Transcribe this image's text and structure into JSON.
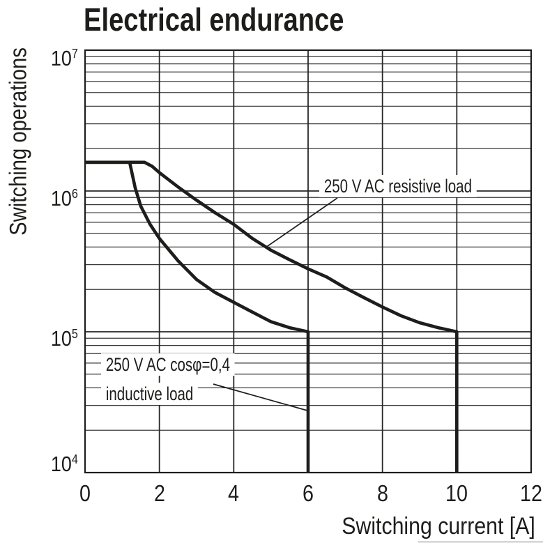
{
  "chart_data": {
    "type": "line",
    "title": "Electrical endurance",
    "xlabel": "Switching current [A]",
    "ylabel": "Switching operations",
    "x_range": [
      0,
      12
    ],
    "x_ticks": [
      0,
      2,
      4,
      6,
      8,
      10,
      12
    ],
    "x_tick_labels": [
      "0",
      "2",
      "4",
      "6",
      "8",
      "10",
      "12"
    ],
    "y_scale": "log",
    "y_exponent_range": [
      4,
      7
    ],
    "y_ticks": [
      {
        "base": "10",
        "exp": "7",
        "value": 10000000
      },
      {
        "base": "10",
        "exp": "6",
        "value": 1000000
      },
      {
        "base": "10",
        "exp": "5",
        "value": 100000
      },
      {
        "base": "10",
        "exp": "4",
        "value": 10000
      }
    ],
    "grid": true,
    "legend_position": "inline-annotations",
    "line_color": "#1d1d1b",
    "background_color": "#ffffff",
    "series": [
      {
        "name": "250 V AC resistive load",
        "label": "250 V AC resistive load",
        "points": [
          [
            0,
            1600000
          ],
          [
            1.6,
            1600000
          ],
          [
            1.8,
            1500000
          ],
          [
            2,
            1350000
          ],
          [
            2.5,
            1070000
          ],
          [
            3,
            860000
          ],
          [
            3.5,
            700000
          ],
          [
            4,
            580000
          ],
          [
            4.5,
            460000
          ],
          [
            5,
            380000
          ],
          [
            5.5,
            325000
          ],
          [
            6,
            280000
          ],
          [
            6.5,
            245000
          ],
          [
            7,
            205000
          ],
          [
            7.5,
            175000
          ],
          [
            8,
            150000
          ],
          [
            8.5,
            130000
          ],
          [
            9,
            116000
          ],
          [
            9.5,
            107000
          ],
          [
            10,
            100000
          ]
        ],
        "vertical_drop_at_x": 10,
        "drop_to_value": 10000
      },
      {
        "name": "250 V AC cosφ=0,4 inductive load",
        "label_line1": "250 V AC cosφ=0,4",
        "label_line2": "inductive load",
        "points": [
          [
            0,
            1600000
          ],
          [
            1.2,
            1600000
          ],
          [
            1.35,
            1050000
          ],
          [
            1.5,
            780000
          ],
          [
            1.75,
            580000
          ],
          [
            2,
            460000
          ],
          [
            2.5,
            320000
          ],
          [
            3,
            235000
          ],
          [
            3.5,
            190000
          ],
          [
            4,
            162000
          ],
          [
            4.5,
            138000
          ],
          [
            5,
            118000
          ],
          [
            5.5,
            107000
          ],
          [
            6,
            100000
          ]
        ],
        "vertical_drop_at_x": 6,
        "drop_to_value": 10000
      }
    ]
  }
}
